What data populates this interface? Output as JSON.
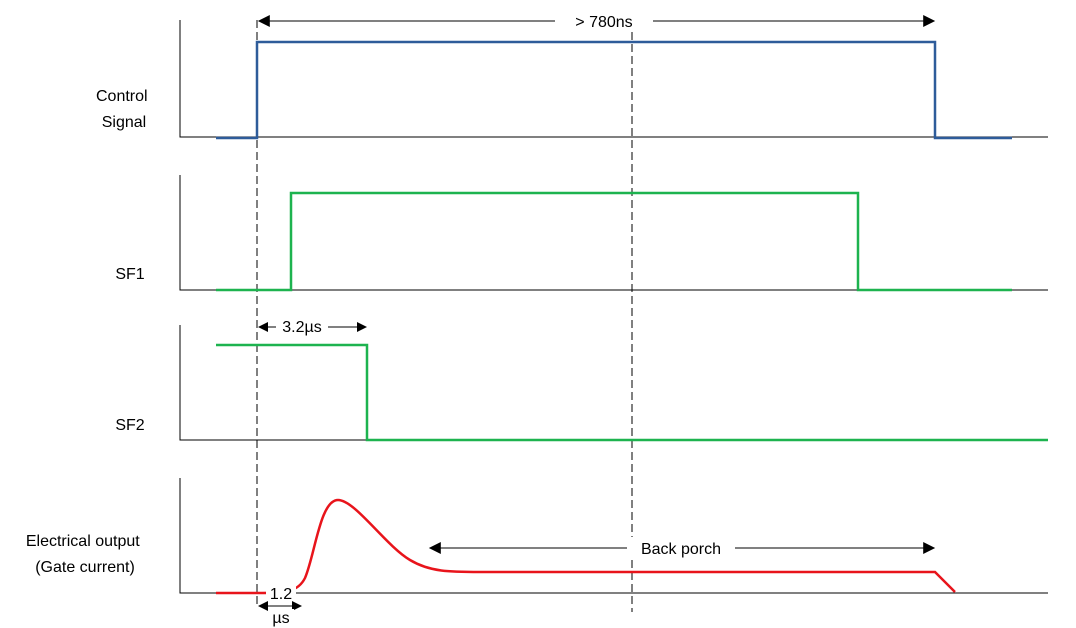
{
  "signals": [
    {
      "id": "control",
      "label_lines": [
        "Control",
        "Signal"
      ],
      "color": "#2e5c9a"
    },
    {
      "id": "sf1",
      "label_lines": [
        "SF1"
      ],
      "color": "#1db34f"
    },
    {
      "id": "sf2",
      "label_lines": [
        "SF2"
      ],
      "color": "#1db34f"
    },
    {
      "id": "output",
      "label_lines": [
        "Electrical output",
        "(Gate current)"
      ],
      "color": "#e8141b"
    }
  ],
  "annotations": {
    "pulse_width": "> 780ns",
    "sf2_delay": "3.2µs",
    "output_delay_line1": "1.2",
    "output_delay_line2": "µs",
    "back_porch": "Back porch"
  }
}
